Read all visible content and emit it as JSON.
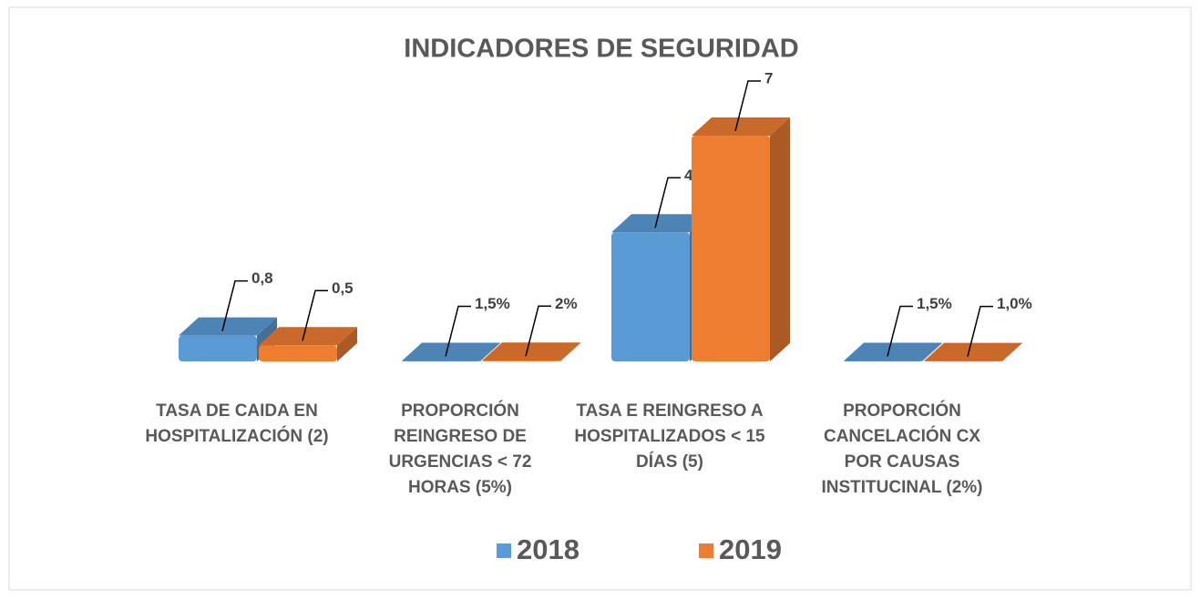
{
  "chart_data": {
    "type": "bar3d",
    "title": "INDICADORES DE SEGURIDAD",
    "categories": [
      "TASA DE CAIDA EN HOSPITALIZACIÓN (2)",
      "PROPORCIÓN REINGRESO  DE URGENCIAS < 72 HORAS (5%)",
      "TASA E REINGRESO A HOSPITALIZADOS < 15 DÍAS (5)",
      "PROPORCIÓN CANCELACIÓN CX POR CAUSAS INSTITUCINAL (2%)"
    ],
    "series": [
      {
        "name": "2018",
        "color": "#5b9bd5",
        "values": [
          0.8,
          0.015,
          4,
          0.015
        ],
        "value_labels": [
          "0,8",
          "1,5%",
          "4",
          "1,5%"
        ]
      },
      {
        "name": "2019",
        "color": "#ed7d31",
        "values": [
          0.5,
          0.02,
          7,
          0.01
        ],
        "value_labels": [
          "0,5",
          "2%",
          "7",
          "1,0%"
        ]
      }
    ],
    "legend": "bottom"
  }
}
